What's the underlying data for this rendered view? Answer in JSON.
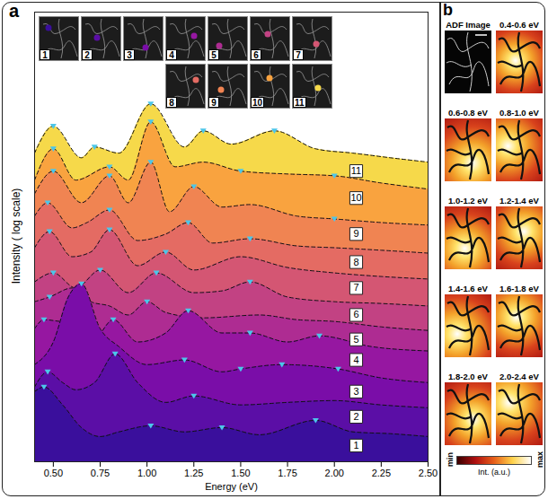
{
  "chart_data": {
    "type": "area",
    "panel_label": "a",
    "x_label": "Energy (eV)",
    "y_label": "Intensity ( log scale)",
    "xlim": [
      0.4,
      2.5
    ],
    "ylim": [
      0,
      12.5
    ],
    "xticks": [
      {
        "value": 0.5,
        "label": "0.50"
      },
      0.75,
      {
        "value": 1,
        "label": "1.00"
      },
      1.25,
      {
        "value": 1.5,
        "label": "1.50"
      },
      1.75,
      {
        "value": 2,
        "label": "2.00"
      },
      2.25,
      {
        "value": 2.5,
        "label": "2.50"
      }
    ],
    "tick_labels": "x",
    "line_style": "dashed",
    "marker": "triangle-down",
    "series": [
      {
        "name": "1",
        "color": "#3a0f9c",
        "x": [
          0.4,
          0.45,
          0.55,
          0.65,
          0.75,
          0.85,
          1.02,
          1.2,
          1.4,
          1.6,
          1.9,
          2.1,
          2.3,
          2.5
        ],
        "values": [
          1.95,
          2.08,
          1.58,
          0.95,
          0.7,
          0.83,
          1.0,
          0.83,
          0.95,
          0.75,
          1.15,
          0.83,
          0.78,
          0.7
        ],
        "peaks": [
          0.45,
          1.02,
          1.4,
          1.9
        ]
      },
      {
        "name": "2",
        "color": "#5b0ea6",
        "x": [
          0.4,
          0.47,
          0.55,
          0.62,
          0.72,
          0.83,
          0.95,
          1.1,
          1.25,
          1.5,
          1.75,
          2.0,
          2.25,
          2.5
        ],
        "values": [
          2.08,
          2.5,
          2.2,
          2.0,
          2.2,
          3.0,
          2.2,
          1.65,
          1.83,
          1.58,
          1.65,
          1.7,
          1.58,
          1.5
        ],
        "peaks": [
          0.47,
          0.83,
          1.25
        ]
      },
      {
        "name": "3",
        "color": "#7a0da8",
        "x": [
          0.4,
          0.5,
          0.58,
          0.65,
          0.75,
          0.85,
          1.0,
          1.2,
          1.4,
          1.5,
          1.72,
          2.02,
          2.25,
          2.5
        ],
        "values": [
          2.7,
          3.33,
          4.58,
          4.95,
          3.7,
          3.2,
          2.7,
          2.83,
          2.5,
          2.58,
          2.7,
          2.58,
          2.33,
          2.2
        ],
        "peaks": [
          0.65,
          1.2,
          1.5,
          1.72,
          2.02
        ]
      },
      {
        "name": "4",
        "color": "#9617a1",
        "x": [
          0.4,
          0.45,
          0.55,
          0.62,
          0.72,
          0.82,
          0.95,
          1.1,
          1.22,
          1.4,
          1.55,
          1.75,
          1.92,
          2.2,
          2.5
        ],
        "values": [
          3.7,
          3.95,
          3.9,
          4.2,
          3.45,
          3.95,
          3.33,
          3.58,
          4.2,
          3.58,
          3.58,
          3.33,
          3.5,
          3.2,
          3.08
        ],
        "peaks": [
          0.45,
          0.82,
          1.22,
          1.55,
          1.92
        ]
      },
      {
        "name": "5",
        "color": "#ae2c92",
        "x": [
          0.4,
          0.48,
          0.6,
          0.7,
          0.8,
          0.9,
          1.0,
          1.1,
          1.3,
          1.6,
          1.8,
          2.0,
          2.25,
          2.5
        ],
        "values": [
          4.45,
          4.58,
          4.83,
          4.45,
          4.33,
          4.08,
          4.45,
          4.15,
          4.0,
          4.08,
          3.95,
          3.9,
          3.75,
          3.65
        ],
        "peaks": [
          0.48,
          1.0
        ]
      },
      {
        "name": "6",
        "color": "#c24283",
        "x": [
          0.4,
          0.5,
          0.62,
          0.75,
          0.9,
          1.05,
          1.25,
          1.4,
          1.55,
          1.75,
          2.0,
          2.25,
          2.5
        ],
        "values": [
          5.0,
          5.25,
          4.83,
          5.33,
          4.7,
          5.25,
          4.7,
          4.75,
          5.0,
          4.58,
          4.45,
          4.4,
          4.33
        ],
        "peaks": [
          0.5,
          0.75,
          1.05,
          1.55
        ]
      },
      {
        "name": "7",
        "color": "#d45673",
        "x": [
          0.4,
          0.48,
          0.6,
          0.7,
          0.8,
          0.95,
          1.1,
          1.25,
          1.5,
          1.75,
          2.0,
          2.25,
          2.5
        ],
        "values": [
          5.95,
          6.4,
          5.7,
          5.83,
          6.45,
          5.45,
          5.83,
          5.33,
          5.7,
          5.4,
          5.25,
          5.15,
          5.08
        ],
        "peaks": [
          0.48,
          0.8,
          1.1
        ]
      },
      {
        "name": "8",
        "color": "#e46b63",
        "x": [
          0.4,
          0.47,
          0.6,
          0.68,
          0.8,
          0.95,
          1.1,
          1.22,
          1.35,
          1.55,
          1.8,
          2.0,
          2.25,
          2.5
        ],
        "values": [
          6.83,
          7.2,
          6.5,
          6.65,
          7.0,
          6.15,
          6.33,
          6.65,
          6.08,
          6.2,
          6.0,
          5.95,
          5.88,
          5.8
        ],
        "peaks": [
          0.47,
          0.8,
          1.22,
          1.55
        ]
      },
      {
        "name": "9",
        "color": "#f08452",
        "x": [
          0.4,
          0.5,
          0.65,
          0.8,
          0.9,
          1.02,
          1.12,
          1.25,
          1.4,
          1.55,
          1.8,
          2.0,
          2.25,
          2.5
        ],
        "values": [
          7.45,
          8.08,
          7.2,
          7.95,
          7.2,
          8.33,
          6.95,
          7.65,
          7.08,
          7.15,
          6.83,
          6.75,
          6.65,
          6.58
        ],
        "peaks": [
          0.5,
          0.8,
          1.02,
          1.25,
          2.0
        ]
      },
      {
        "name": "10",
        "color": "#f9a33f",
        "x": [
          0.4,
          0.5,
          0.62,
          0.8,
          0.9,
          1.02,
          1.15,
          1.3,
          1.5,
          1.75,
          2.0,
          2.25,
          2.5
        ],
        "values": [
          7.83,
          8.7,
          7.83,
          8.2,
          7.83,
          9.45,
          8.2,
          8.33,
          8.08,
          8.0,
          7.95,
          7.75,
          7.58
        ],
        "peaks": [
          0.5,
          0.8,
          1.02,
          1.5,
          2.0
        ]
      },
      {
        "name": "11",
        "color": "#f6d94a",
        "x": [
          0.4,
          0.5,
          0.65,
          0.72,
          0.85,
          1.02,
          1.2,
          1.3,
          1.45,
          1.68,
          1.9,
          2.1,
          2.3,
          2.5
        ],
        "values": [
          8.58,
          9.33,
          8.45,
          8.75,
          8.58,
          9.95,
          8.75,
          9.2,
          8.83,
          9.2,
          8.7,
          8.58,
          8.45,
          8.33
        ],
        "peaks": [
          0.5,
          0.72,
          1.02,
          1.3,
          1.68
        ]
      }
    ]
  },
  "panel_b": {
    "panel_label": "b",
    "maps": [
      "ADF Image",
      "0.4-0.6 eV",
      "0.6-0.8 eV",
      "0.8-1.0 eV",
      "1.0-1.2 eV",
      "1.2-1.4 eV",
      "1.4-1.6 eV",
      "1.6-1.8 eV",
      "1.8-2.0 eV",
      "2.0-2.4 eV"
    ],
    "colorbar": {
      "label": "Int. (a.u.)",
      "min_label": "min",
      "max_label": "max"
    }
  }
}
